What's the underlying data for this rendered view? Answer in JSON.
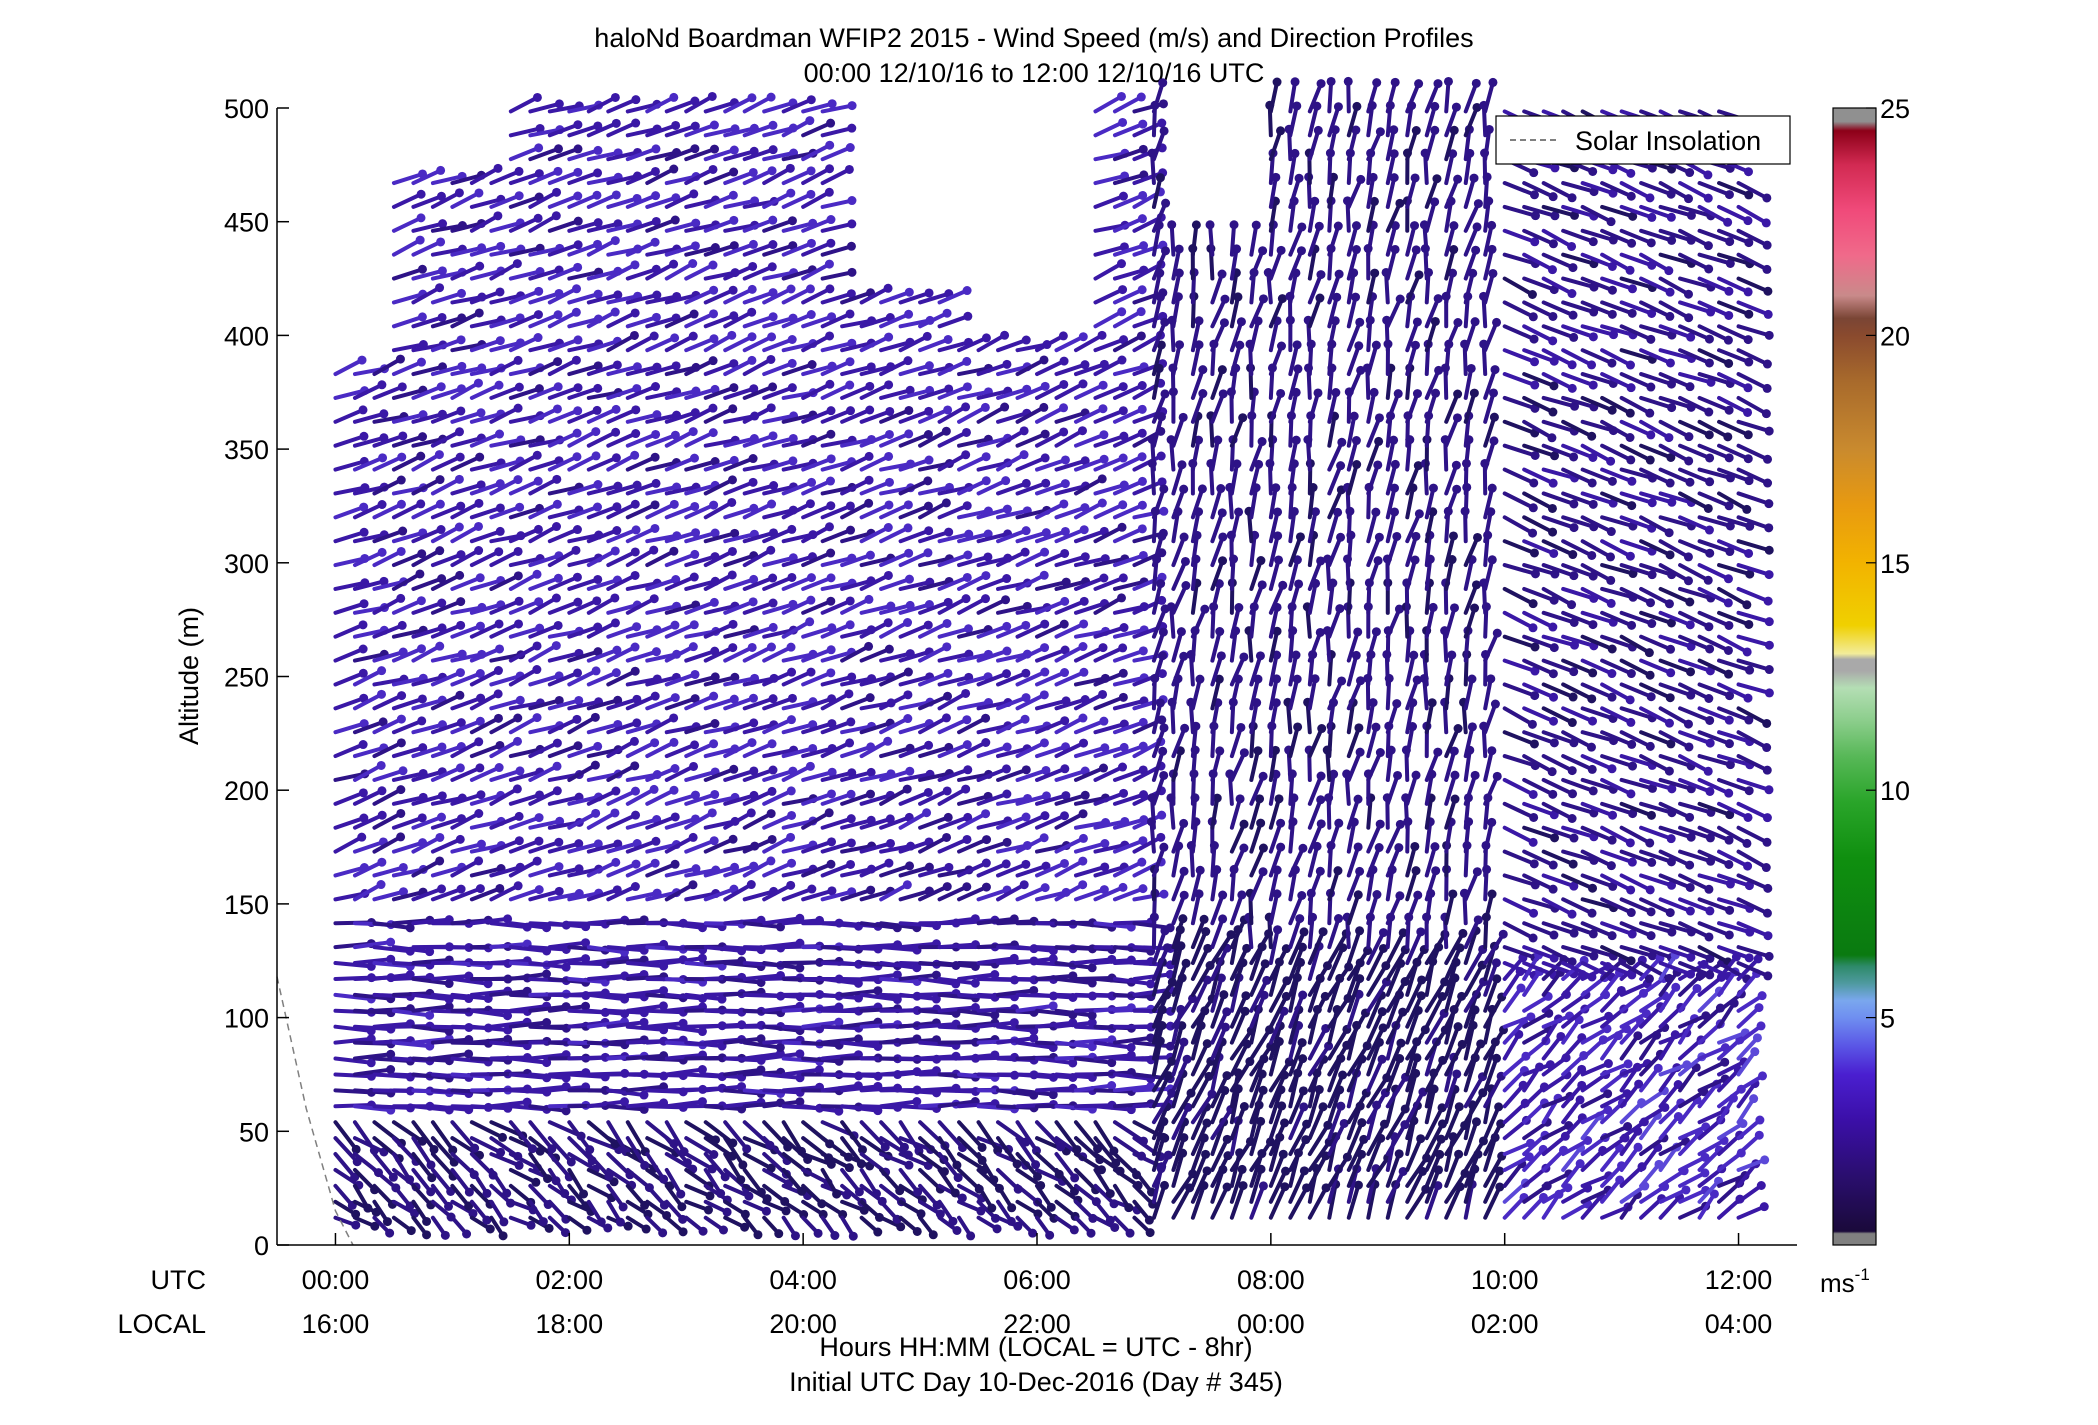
{
  "chart_data": {
    "type": "wind barb profile (scatter)",
    "title": "haloNd Boardman WFIP2 2015 - Wind Speed (m/s) and Direction Profiles",
    "subtitle": "00:00 12/10/16 to 12:00 12/10/16  UTC",
    "ylabel": "Altitude (m)",
    "xlabel": "Hours HH:MM  (LOCAL = UTC - 8hr)",
    "xlabel2": "Initial UTC Day 10-Dec-2016 (Day # 345)",
    "row_label_utc": "UTC",
    "row_label_local": "LOCAL",
    "x_utc_range_hours": [
      -0.5,
      12.5
    ],
    "ylim": [
      0,
      500
    ],
    "y_ticks": [
      0,
      50,
      100,
      150,
      200,
      250,
      300,
      350,
      400,
      450,
      500
    ],
    "x_ticks": [
      {
        "hour": 0,
        "utc": "00:00",
        "local": "16:00"
      },
      {
        "hour": 2,
        "utc": "02:00",
        "local": "18:00"
      },
      {
        "hour": 4,
        "utc": "04:00",
        "local": "20:00"
      },
      {
        "hour": 6,
        "utc": "06:00",
        "local": "22:00"
      },
      {
        "hour": 8,
        "utc": "08:00",
        "local": "00:00"
      },
      {
        "hour": 10,
        "utc": "10:00",
        "local": "02:00"
      },
      {
        "hour": 12,
        "utc": "12:00",
        "local": "04:00"
      }
    ],
    "legend": {
      "label": "Solar Insolation",
      "placement": "top-right",
      "line_style": "dashed",
      "color": "#808080"
    },
    "solar_insolation_line": [
      {
        "hour": -0.5,
        "altitude": 118
      },
      {
        "hour": -0.25,
        "altitude": 60
      },
      {
        "hour": 0.0,
        "altitude": 15
      },
      {
        "hour": 0.15,
        "altitude": 0
      }
    ],
    "colorbar": {
      "min": 0,
      "max": 25,
      "ticks": [
        5,
        10,
        15,
        20,
        25
      ],
      "unit": "ms-1",
      "colors": [
        "#808080",
        "#1a0a3a",
        "#2a0e6e",
        "#3b0fa8",
        "#4a1fd0",
        "#5a56e6",
        "#6f8ff0",
        "#7aa7ee",
        "#4f9aa0",
        "#2e8a6a",
        "#0a7a10",
        "#0f8f0f",
        "#2aa52a",
        "#58b858",
        "#8acd8a",
        "#b4deb4",
        "#a9a9a9",
        "#f2ec9a",
        "#f0d000",
        "#f2b300",
        "#e89a10",
        "#c98a2e",
        "#a86a2c",
        "#8a4a2e",
        "#7a4535",
        "#c98a8a",
        "#f06a8a",
        "#f04a7a",
        "#d22a52",
        "#b8102a",
        "#8c0018",
        "#909090"
      ]
    },
    "series_summary": {
      "profile_interval_minutes": 10,
      "altitude_gates_m": "12 to 500 (approx. 10-18 m spacing)",
      "speed_range_ms": [
        0.5,
        5
      ],
      "dominant_color": "dark navy / purple (0.5-5 m/s)",
      "direction_notes": "Mostly west-north-westerly flow aloft; near-vertical (northerly/southerly) barbs between 07:00 and 10:00 UTC; data gaps above ~400 m around 04:30-06:30 UTC"
    }
  }
}
